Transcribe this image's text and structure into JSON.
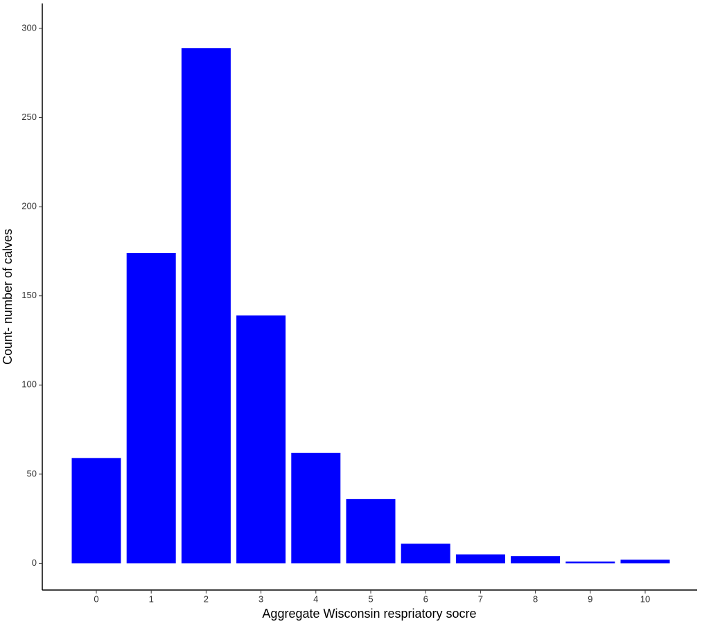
{
  "chart_data": {
    "type": "bar",
    "x_label": "Aggregate Wisconsin respriatory socre",
    "y_label": "Count- number of calves",
    "categories": [
      "0",
      "1",
      "2",
      "3",
      "4",
      "5",
      "6",
      "7",
      "8",
      "9",
      "10"
    ],
    "values": [
      59,
      174,
      289,
      139,
      62,
      36,
      11,
      5,
      4,
      1,
      2
    ],
    "color": "#0000ff",
    "ylim": [
      -15,
      314
    ],
    "yticks": [
      0,
      50,
      100,
      150,
      200,
      250,
      300
    ],
    "grid": false
  }
}
